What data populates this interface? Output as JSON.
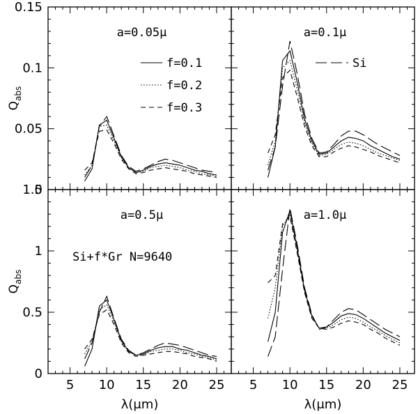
{
  "chart_data": [
    {
      "type": "line",
      "panel": "top-left",
      "title": "a=0.05μ",
      "xlabel": "",
      "ylabel": "Q",
      "ylabel_sub": "abs",
      "xlim": [
        2,
        27
      ],
      "ylim": [
        0,
        0.15
      ],
      "xticks": [
        5,
        10,
        15,
        20,
        25
      ],
      "yticks": [
        0,
        0.05,
        0.1,
        0.15
      ],
      "ytick_labels": [
        "0",
        "0.05",
        "0.1",
        "0.15"
      ],
      "legend": [
        {
          "label": "f=0.1",
          "style": "solid"
        },
        {
          "label": "f=0.2",
          "style": "dotted"
        },
        {
          "label": "f=0.3",
          "style": "dashed"
        }
      ],
      "series": [
        {
          "name": "Si",
          "style": "longdash",
          "x": [
            7,
            8,
            9,
            10,
            11,
            12,
            13,
            14,
            15,
            16,
            17,
            18,
            19,
            20,
            21,
            22,
            23,
            24,
            25
          ],
          "y": [
            0.01,
            0.02,
            0.052,
            0.06,
            0.044,
            0.028,
            0.019,
            0.015,
            0.017,
            0.02,
            0.023,
            0.025,
            0.024,
            0.022,
            0.02,
            0.018,
            0.016,
            0.015,
            0.014
          ]
        },
        {
          "name": "f=0.1",
          "style": "solid",
          "x": [
            7,
            8,
            9,
            10,
            11,
            12,
            13,
            14,
            15,
            16,
            17,
            18,
            19,
            20,
            21,
            22,
            23,
            24,
            25
          ],
          "y": [
            0.007,
            0.017,
            0.053,
            0.057,
            0.042,
            0.027,
            0.018,
            0.014,
            0.016,
            0.019,
            0.021,
            0.022,
            0.021,
            0.02,
            0.018,
            0.016,
            0.015,
            0.013,
            0.012
          ]
        },
        {
          "name": "f=0.2",
          "style": "dotted",
          "x": [
            7,
            8,
            9,
            10,
            11,
            12,
            13,
            14,
            15,
            16,
            17,
            18,
            19,
            20,
            21,
            22,
            23,
            24,
            25
          ],
          "y": [
            0.012,
            0.02,
            0.052,
            0.053,
            0.04,
            0.026,
            0.018,
            0.014,
            0.015,
            0.018,
            0.019,
            0.02,
            0.019,
            0.018,
            0.016,
            0.015,
            0.013,
            0.012,
            0.011
          ]
        },
        {
          "name": "f=0.3",
          "style": "dashed",
          "x": [
            7,
            8,
            9,
            10,
            11,
            12,
            13,
            14,
            15,
            16,
            17,
            18,
            19,
            20,
            21,
            22,
            23,
            24,
            25
          ],
          "y": [
            0.016,
            0.022,
            0.048,
            0.049,
            0.038,
            0.025,
            0.017,
            0.013,
            0.014,
            0.016,
            0.017,
            0.018,
            0.017,
            0.016,
            0.015,
            0.013,
            0.012,
            0.011,
            0.01
          ]
        }
      ]
    },
    {
      "type": "line",
      "panel": "top-right",
      "title": "a=0.1μ",
      "xlabel": "",
      "ylabel": "",
      "xlim": [
        2,
        27
      ],
      "ylim": [
        0,
        0.15
      ],
      "xticks": [
        5,
        10,
        15,
        20,
        25
      ],
      "yticks": [
        0,
        0.05,
        0.1,
        0.15
      ],
      "legend": [
        {
          "label": "Si",
          "style": "longdash"
        }
      ],
      "series": [
        {
          "name": "Si",
          "style": "longdash",
          "x": [
            7,
            8,
            9,
            10,
            11,
            12,
            13,
            14,
            15,
            16,
            17,
            18,
            19,
            20,
            21,
            22,
            23,
            24,
            25
          ],
          "y": [
            0.016,
            0.035,
            0.085,
            0.122,
            0.095,
            0.062,
            0.042,
            0.03,
            0.031,
            0.037,
            0.044,
            0.048,
            0.048,
            0.045,
            0.041,
            0.037,
            0.034,
            0.031,
            0.028
          ]
        },
        {
          "name": "f=0.1",
          "style": "solid",
          "x": [
            7,
            8,
            9,
            10,
            11,
            12,
            13,
            14,
            15,
            16,
            17,
            18,
            19,
            20,
            21,
            22,
            23,
            24,
            25
          ],
          "y": [
            0.01,
            0.035,
            0.106,
            0.114,
            0.088,
            0.058,
            0.04,
            0.029,
            0.03,
            0.035,
            0.04,
            0.043,
            0.042,
            0.04,
            0.036,
            0.033,
            0.03,
            0.027,
            0.025
          ]
        },
        {
          "name": "f=0.2",
          "style": "dotted",
          "x": [
            7,
            8,
            9,
            10,
            11,
            12,
            13,
            14,
            15,
            16,
            17,
            18,
            19,
            20,
            21,
            22,
            23,
            24,
            25
          ],
          "y": [
            0.02,
            0.04,
            0.1,
            0.106,
            0.082,
            0.055,
            0.038,
            0.028,
            0.029,
            0.033,
            0.037,
            0.039,
            0.038,
            0.036,
            0.033,
            0.03,
            0.028,
            0.026,
            0.024
          ]
        },
        {
          "name": "f=0.3",
          "style": "dashed",
          "x": [
            7,
            8,
            9,
            10,
            11,
            12,
            13,
            14,
            15,
            16,
            17,
            18,
            19,
            20,
            21,
            22,
            23,
            24,
            25
          ],
          "y": [
            0.03,
            0.045,
            0.092,
            0.098,
            0.076,
            0.052,
            0.036,
            0.027,
            0.027,
            0.031,
            0.034,
            0.036,
            0.035,
            0.033,
            0.031,
            0.028,
            0.026,
            0.024,
            0.022
          ]
        }
      ]
    },
    {
      "type": "line",
      "panel": "bottom-left",
      "title": "a=0.5μ",
      "annotation": "Si+f*Gr N=9640",
      "xlabel": "λ(μm)",
      "ylabel": "Q",
      "ylabel_sub": "abs",
      "xlim": [
        2,
        27
      ],
      "ylim": [
        0,
        1.5
      ],
      "xticks": [
        5,
        10,
        15,
        20,
        25
      ],
      "xtick_labels": [
        "5",
        "10",
        "15",
        "20",
        "25"
      ],
      "yticks": [
        0,
        0.5,
        1,
        1.5
      ],
      "ytick_labels": [
        "0",
        "0.5",
        "1",
        "1.5"
      ],
      "series": [
        {
          "name": "Si",
          "style": "longdash",
          "x": [
            7,
            8,
            9,
            10,
            11,
            12,
            13,
            14,
            15,
            16,
            17,
            18,
            19,
            20,
            21,
            22,
            23,
            24,
            25
          ],
          "y": [
            0.12,
            0.25,
            0.5,
            0.63,
            0.45,
            0.28,
            0.19,
            0.15,
            0.17,
            0.2,
            0.23,
            0.25,
            0.24,
            0.23,
            0.21,
            0.19,
            0.17,
            0.15,
            0.14
          ]
        },
        {
          "name": "f=0.1",
          "style": "solid",
          "x": [
            7,
            8,
            9,
            10,
            11,
            12,
            13,
            14,
            15,
            16,
            17,
            18,
            19,
            20,
            21,
            22,
            23,
            24,
            25
          ],
          "y": [
            0.06,
            0.2,
            0.55,
            0.6,
            0.44,
            0.27,
            0.18,
            0.15,
            0.16,
            0.19,
            0.21,
            0.22,
            0.22,
            0.2,
            0.19,
            0.17,
            0.15,
            0.14,
            0.12
          ]
        },
        {
          "name": "f=0.2",
          "style": "dotted",
          "x": [
            7,
            8,
            9,
            10,
            11,
            12,
            13,
            14,
            15,
            16,
            17,
            18,
            19,
            20,
            21,
            22,
            23,
            24,
            25
          ],
          "y": [
            0.16,
            0.26,
            0.52,
            0.56,
            0.42,
            0.26,
            0.18,
            0.15,
            0.15,
            0.18,
            0.19,
            0.2,
            0.2,
            0.19,
            0.17,
            0.16,
            0.14,
            0.13,
            0.11
          ]
        },
        {
          "name": "f=0.3",
          "style": "dashed",
          "x": [
            7,
            8,
            9,
            10,
            11,
            12,
            13,
            14,
            15,
            16,
            17,
            18,
            19,
            20,
            21,
            22,
            23,
            24,
            25
          ],
          "y": [
            0.2,
            0.28,
            0.48,
            0.52,
            0.4,
            0.25,
            0.17,
            0.14,
            0.15,
            0.16,
            0.17,
            0.18,
            0.18,
            0.17,
            0.16,
            0.14,
            0.13,
            0.12,
            0.1
          ]
        }
      ]
    },
    {
      "type": "line",
      "panel": "bottom-right",
      "title": "a=1.0μ",
      "xlabel": "λ(μm)",
      "ylabel": "",
      "xlim": [
        2,
        27
      ],
      "ylim": [
        0,
        1.5
      ],
      "xticks": [
        5,
        10,
        15,
        20,
        25
      ],
      "xtick_labels": [
        "5",
        "10",
        "15",
        "20",
        "25"
      ],
      "yticks": [
        0,
        0.5,
        1,
        1.5
      ],
      "series": [
        {
          "name": "Si",
          "style": "longdash",
          "x": [
            7,
            8,
            9,
            10,
            11,
            12,
            13,
            14,
            15,
            16,
            17,
            18,
            19,
            20,
            21,
            22,
            23,
            24,
            25
          ],
          "y": [
            0.14,
            0.3,
            0.85,
            1.35,
            1.05,
            0.7,
            0.48,
            0.36,
            0.38,
            0.44,
            0.5,
            0.53,
            0.52,
            0.48,
            0.44,
            0.4,
            0.36,
            0.33,
            0.3
          ]
        },
        {
          "name": "f=0.1",
          "style": "solid",
          "x": [
            7,
            8,
            9,
            10,
            11,
            12,
            13,
            14,
            15,
            16,
            17,
            18,
            19,
            20,
            21,
            22,
            23,
            24,
            25
          ],
          "y": [
            0.26,
            0.5,
            1.15,
            1.33,
            1.02,
            0.68,
            0.47,
            0.37,
            0.38,
            0.42,
            0.47,
            0.49,
            0.48,
            0.45,
            0.41,
            0.37,
            0.33,
            0.3,
            0.27
          ]
        },
        {
          "name": "f=0.2",
          "style": "dotted",
          "x": [
            7,
            8,
            9,
            10,
            11,
            12,
            13,
            14,
            15,
            16,
            17,
            18,
            19,
            20,
            21,
            22,
            23,
            24,
            25
          ],
          "y": [
            0.45,
            0.7,
            1.2,
            1.3,
            1.0,
            0.67,
            0.46,
            0.37,
            0.37,
            0.4,
            0.44,
            0.46,
            0.45,
            0.42,
            0.38,
            0.35,
            0.31,
            0.28,
            0.25
          ]
        },
        {
          "name": "f=0.3",
          "style": "dashed",
          "x": [
            7,
            8,
            9,
            10,
            11,
            12,
            13,
            14,
            15,
            16,
            17,
            18,
            19,
            20,
            21,
            22,
            23,
            24,
            25
          ],
          "y": [
            0.74,
            0.8,
            1.22,
            1.28,
            0.98,
            0.66,
            0.45,
            0.37,
            0.36,
            0.38,
            0.41,
            0.43,
            0.42,
            0.4,
            0.36,
            0.33,
            0.29,
            0.26,
            0.23
          ]
        }
      ]
    }
  ]
}
